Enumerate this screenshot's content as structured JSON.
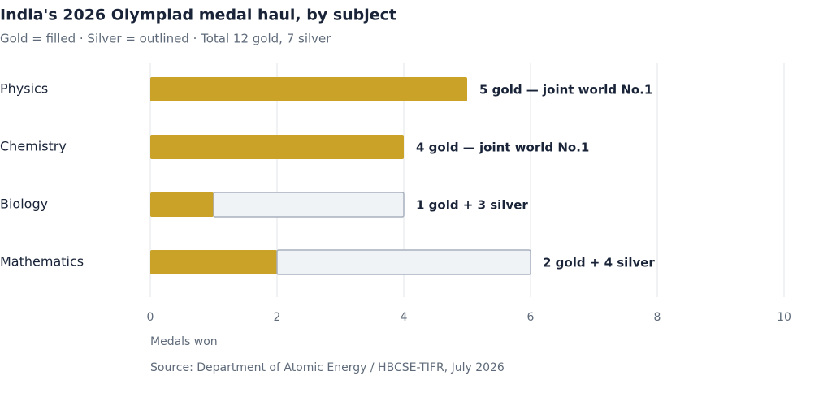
{
  "chart_data": {
    "type": "hbar_stacked",
    "title": "India's 2026 Olympiad medal haul, by subject",
    "subtitle": "Gold = filled · Silver = outlined · Total 12 gold, 7 silver",
    "categories": [
      "Physics",
      "Chemistry",
      "Biology",
      "Mathematics"
    ],
    "series": [
      {
        "name": "Gold",
        "color": "#c9a227",
        "values": [
          5,
          4,
          1,
          2
        ]
      },
      {
        "name": "Silver",
        "color": "#f0f3f6",
        "stroke": "#a7b0bd",
        "values": [
          0,
          0,
          3,
          4
        ]
      }
    ],
    "bar_labels": [
      "5 gold — joint world No.1",
      "4 gold — joint world No.1",
      "1 gold + 3 silver",
      "2 gold + 4 silver"
    ],
    "xlim": [
      0,
      10
    ],
    "xticks": [
      0,
      2,
      4,
      6,
      8,
      10
    ],
    "grid": true,
    "xlabel": "Medals won",
    "source": "Source: Department of Atomic Energy / HBCSE-TIFR, July 2026"
  }
}
